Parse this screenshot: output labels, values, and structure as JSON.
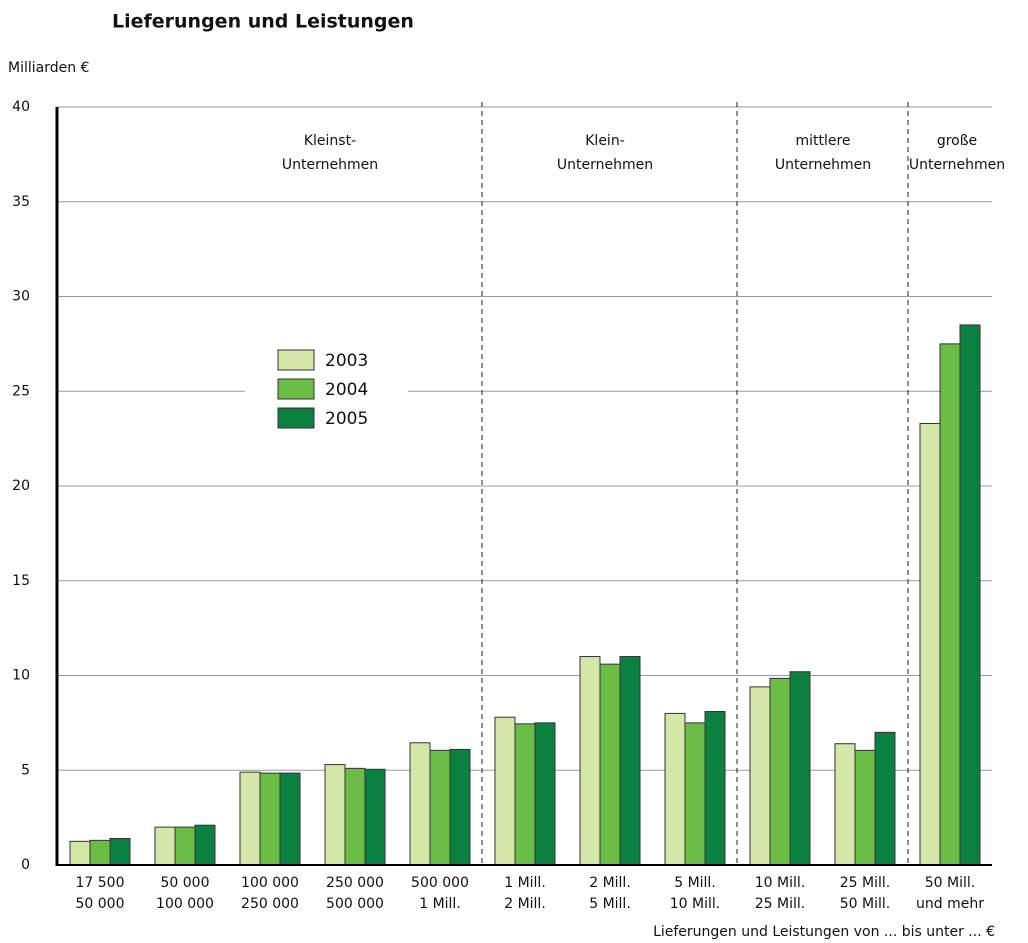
{
  "chart_data": {
    "type": "bar",
    "title": "Lieferungen und Leistungen",
    "y_label": "Milliarden  €",
    "x_label": "Lieferungen und Leistungen von ... bis unter ...  €",
    "categories": [
      [
        "17 500",
        "50 000"
      ],
      [
        "50 000",
        "100 000"
      ],
      [
        "100 000",
        "250 000"
      ],
      [
        "250 000",
        "500 000"
      ],
      [
        "500 000",
        "1 Mill."
      ],
      [
        "1 Mill.",
        "2 Mill."
      ],
      [
        "2 Mill.",
        "5 Mill."
      ],
      [
        "5 Mill.",
        "10 Mill."
      ],
      [
        "10 Mill.",
        "25 Mill."
      ],
      [
        "25 Mill.",
        "50 Mill."
      ],
      [
        "50 Mill.",
        "und mehr"
      ]
    ],
    "groups": [
      [
        "Kleinst-",
        "Unternehmen"
      ],
      [
        "Klein-",
        "Unternehmen"
      ],
      [
        "mittlere",
        "Unternehmen"
      ],
      [
        "große",
        "Unternehmen"
      ]
    ],
    "series": [
      {
        "name": "2003",
        "color": "#d4e6a8",
        "values": [
          1.25,
          2.0,
          4.9,
          5.3,
          6.45,
          7.8,
          11.0,
          8.0,
          9.4,
          6.4,
          23.3
        ]
      },
      {
        "name": "2004",
        "color": "#6cbd45",
        "values": [
          1.3,
          2.0,
          4.85,
          5.1,
          6.05,
          7.45,
          10.6,
          7.5,
          9.85,
          6.05,
          27.5
        ]
      },
      {
        "name": "2005",
        "color": "#0b8040",
        "values": [
          1.4,
          2.1,
          4.85,
          5.05,
          6.1,
          7.5,
          11.0,
          8.1,
          10.2,
          7.0,
          28.5
        ]
      }
    ],
    "ylim": [
      0,
      40
    ],
    "yticks": [
      0,
      5,
      10,
      15,
      20,
      25,
      30,
      35,
      40
    ],
    "grid": true
  }
}
